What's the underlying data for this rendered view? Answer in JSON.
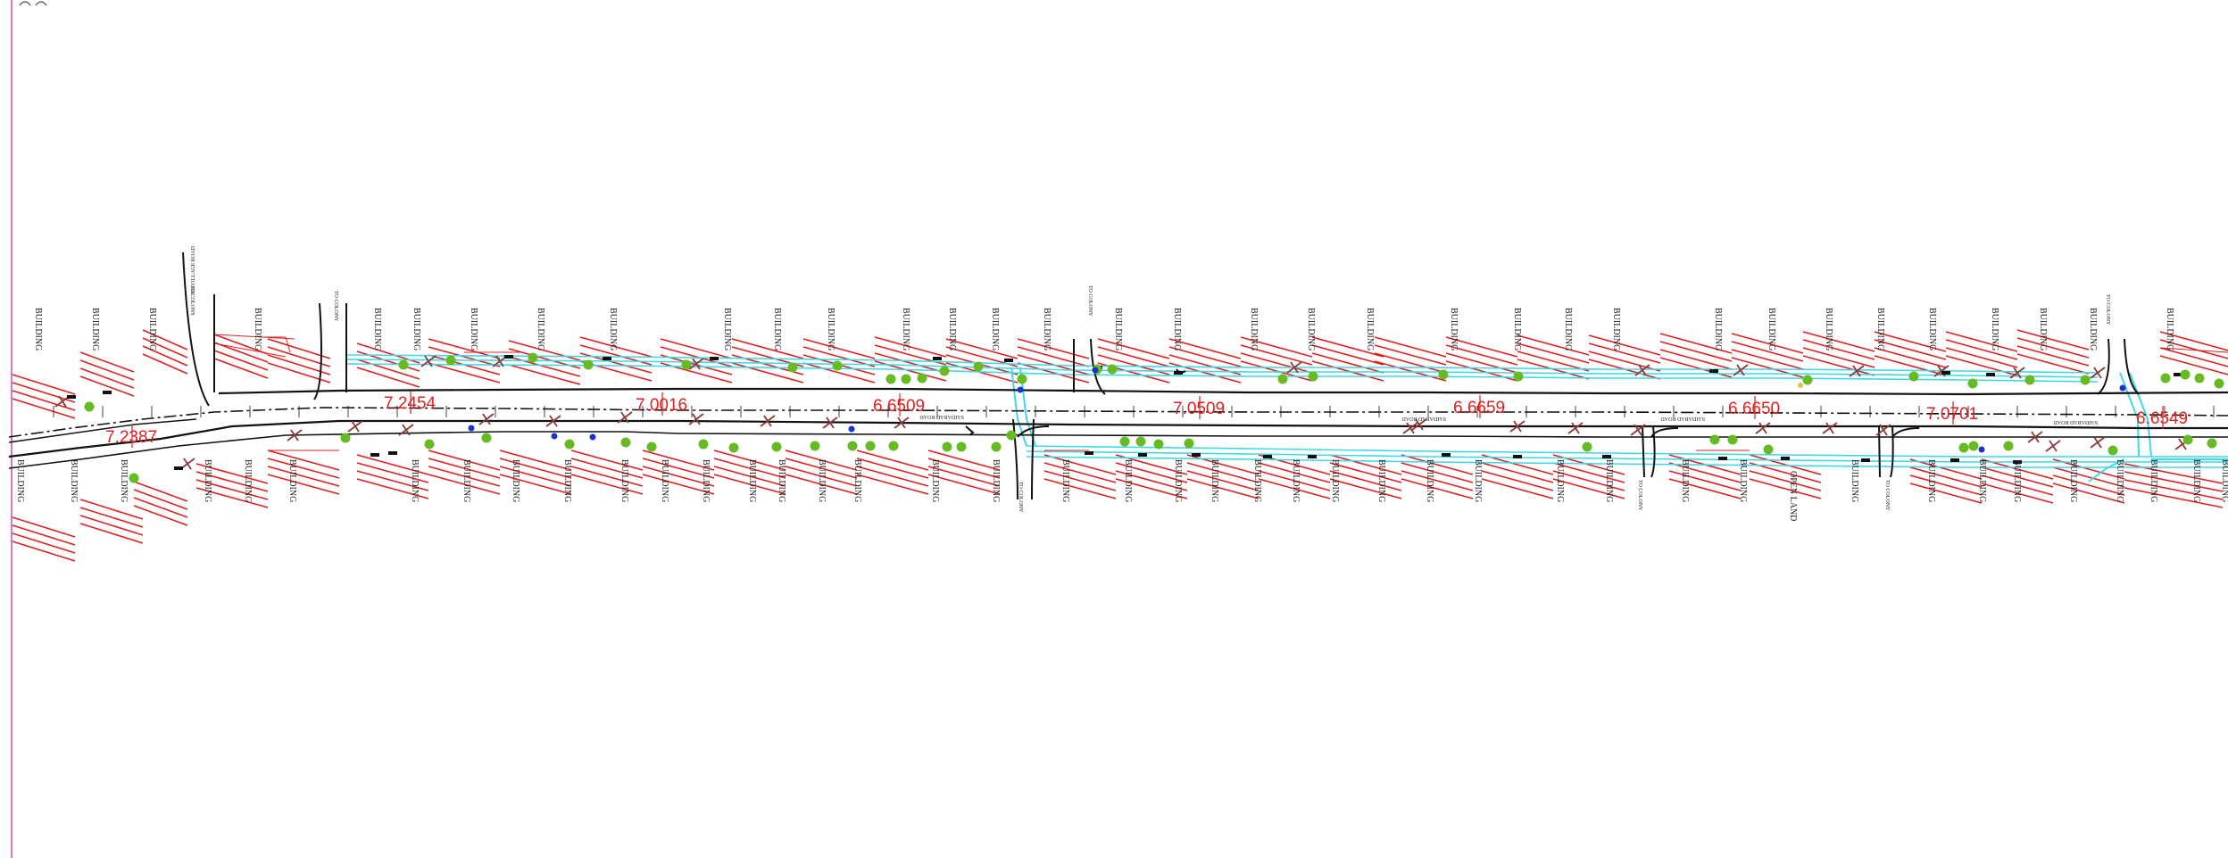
{
  "drawing": {
    "colors": {
      "hatch": "#e02020",
      "pipeline": "#3fd9e6",
      "road": "#111111",
      "tree": "#66bb22",
      "valve": "#1a33cc",
      "pole": "#8b3a3a",
      "label": "#e02020",
      "border": "#d27ac4"
    },
    "chainage_labels": [
      "7.2387",
      "7.2454",
      "7.0016",
      "6.6509",
      "7.0509",
      "6.6659",
      "6.6650",
      "7.0701",
      "6.6549"
    ],
    "building_word": "BUILDING",
    "open_land_word": "OPEN LAND",
    "colony_word": "TO COLONY",
    "village_road_word": "TO VILLAGE ROAD",
    "road_name": "SAIDABAD ROAD"
  }
}
